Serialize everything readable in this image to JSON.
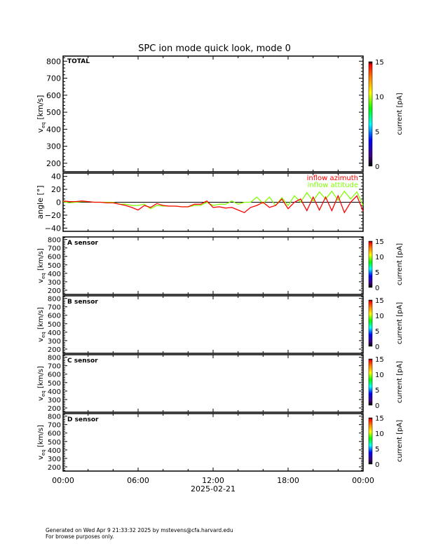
{
  "chart_data": [
    {
      "type": "heatmap",
      "title": "SPC ion mode quick look, mode 0",
      "panel_label": "TOTAL",
      "ylabel": "v_eq [km/s]",
      "ylabel_main": "v",
      "ylabel_sub": "eq",
      "ylabel_unit": "[km/s]",
      "ylim": [
        150,
        830
      ],
      "yticks": [
        200,
        300,
        400,
        500,
        600,
        700,
        800
      ],
      "colorbar": {
        "label": "current [pA]",
        "range": [
          0,
          15
        ],
        "ticks": [
          0,
          5,
          10,
          15
        ]
      }
    },
    {
      "type": "line",
      "ylabel": "angle [°]",
      "ylim": [
        -45,
        45
      ],
      "yticks": [
        -40,
        -20,
        0,
        20,
        40
      ],
      "reference_line": 0,
      "x_hours": [
        0,
        0.5,
        1,
        1.5,
        2,
        2.5,
        3,
        3.5,
        4,
        4.5,
        5,
        5.5,
        6,
        6.5,
        7,
        7.5,
        8,
        8.5,
        9,
        9.5,
        10,
        10.5,
        11,
        11.5,
        12,
        12.5,
        13,
        13.5,
        14,
        14.5,
        15,
        15.5,
        16,
        16.5,
        17,
        17.5,
        18,
        18.5,
        19,
        19.5,
        20,
        20.5,
        21,
        21.5,
        22,
        22.5,
        23,
        23.5,
        24
      ],
      "series": [
        {
          "name": "inflow azimuth",
          "color": "#ff0000",
          "values": [
            2,
            1,
            1,
            2,
            1,
            0,
            0,
            -1,
            -1,
            -3,
            -5,
            -8,
            -12,
            -5,
            -8,
            -2,
            -5,
            -6,
            -6,
            -7,
            -7,
            -3,
            -3,
            2,
            -8,
            -7,
            -9,
            -8,
            -12,
            -16,
            -8,
            -5,
            0,
            -8,
            -5,
            5,
            -10,
            0,
            5,
            -13,
            8,
            -12,
            8,
            -13,
            10,
            -16,
            0,
            10,
            -14
          ]
        },
        {
          "name": "inflow attitude",
          "color": "#80ff00",
          "values": [
            1,
            -1,
            0,
            1,
            1,
            0,
            0,
            0,
            0,
            -3,
            -3,
            -5,
            -5,
            -3,
            -10,
            -5,
            -6,
            -6,
            -6,
            -7,
            -7,
            -5,
            -5,
            0,
            -5,
            -3,
            -3,
            2,
            -3,
            0,
            0,
            8,
            -2,
            8,
            -5,
            7,
            -5,
            10,
            0,
            15,
            2,
            16,
            5,
            17,
            3,
            17,
            5,
            16,
            -5
          ]
        }
      ]
    },
    {
      "type": "heatmap",
      "panel_label": "A sensor",
      "ylabel": "v_eq [km/s]",
      "yticks": [
        200,
        300,
        400,
        500,
        600,
        700,
        800
      ],
      "colorbar": {
        "label": "current [pA]",
        "range": [
          0,
          15
        ],
        "ticks": [
          0,
          5,
          10,
          15
        ]
      }
    },
    {
      "type": "heatmap",
      "panel_label": "B sensor",
      "ylabel": "v_eq [km/s]",
      "yticks": [
        200,
        300,
        400,
        500,
        600,
        700,
        800
      ],
      "colorbar": {
        "label": "current [pA]",
        "range": [
          0,
          15
        ],
        "ticks": [
          0,
          5,
          10,
          15
        ]
      }
    },
    {
      "type": "heatmap",
      "panel_label": "C sensor",
      "ylabel": "v_eq [km/s]",
      "yticks": [
        200,
        300,
        400,
        500,
        600,
        700,
        800
      ],
      "colorbar": {
        "label": "current [pA]",
        "range": [
          0,
          15
        ],
        "ticks": [
          0,
          5,
          10,
          15
        ]
      }
    },
    {
      "type": "heatmap",
      "panel_label": "D sensor",
      "ylabel": "v_eq [km/s]",
      "yticks": [
        200,
        300,
        400,
        500,
        600,
        700,
        800
      ],
      "colorbar": {
        "label": "current [pA]",
        "range": [
          0,
          15
        ],
        "ticks": [
          0,
          5,
          10,
          15
        ]
      }
    }
  ],
  "x_axis": {
    "ticks": [
      "00:00",
      "06:00",
      "12:00",
      "18:00",
      "00:00"
    ],
    "date": "2025-02-21"
  },
  "footer": {
    "line1": "Generated on Wed Apr  9 21:33:32 2025 by mstevens@cfa.harvard.edu",
    "line2": "For browse purposes only."
  }
}
